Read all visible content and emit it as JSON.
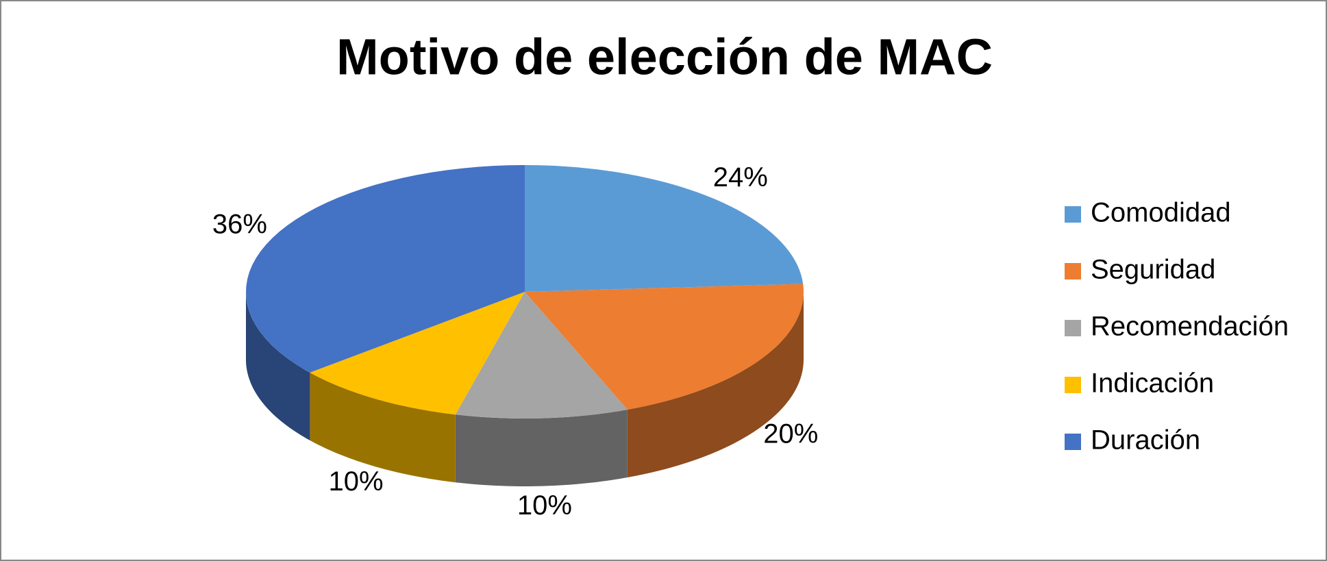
{
  "chart_data": {
    "type": "pie",
    "title": "Motivo de elección de MAC",
    "categories": [
      "Comodidad",
      "Seguridad",
      "Recomendación",
      "Indicación",
      "Duración"
    ],
    "values": [
      24,
      20,
      10,
      10,
      36
    ],
    "value_labels": [
      "24%",
      "20%",
      "10%",
      "10%",
      "36%"
    ],
    "colors": [
      "#5b9bd5",
      "#ed7d31",
      "#a5a5a5",
      "#ffc000",
      "#4472c4"
    ],
    "legend": "right"
  }
}
